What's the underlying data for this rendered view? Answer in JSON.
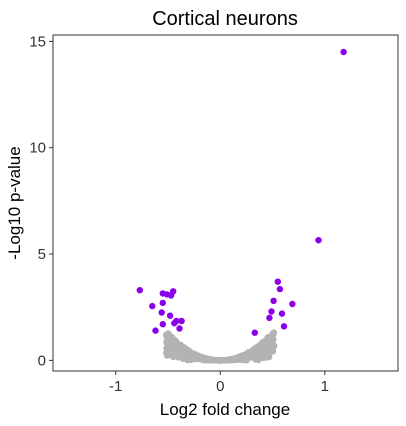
{
  "chart_data": {
    "type": "scatter",
    "title": "Cortical neurons",
    "xlabel": "Log2 fold change",
    "ylabel": "-Log10 p-value",
    "xlim": [
      -1.6,
      1.7
    ],
    "ylim": [
      -0.5,
      15.3
    ],
    "x_ticks": [
      -1,
      0,
      1
    ],
    "x_tick_labels": [
      "-1",
      "0",
      "1"
    ],
    "y_ticks": [
      0,
      5,
      10,
      15
    ],
    "y_tick_labels": [
      "0",
      "5",
      "10",
      "15"
    ],
    "grid": false,
    "colors": {
      "significant": "#8B00E8",
      "nonsignificant": "#B3B3B3"
    },
    "significant_points": [
      {
        "x": 1.18,
        "y": 14.5
      },
      {
        "x": 0.94,
        "y": 5.65
      },
      {
        "x": 0.55,
        "y": 3.7
      },
      {
        "x": 0.57,
        "y": 3.35
      },
      {
        "x": 0.51,
        "y": 2.8
      },
      {
        "x": 0.69,
        "y": 2.65
      },
      {
        "x": 0.49,
        "y": 2.3
      },
      {
        "x": 0.59,
        "y": 2.2
      },
      {
        "x": 0.47,
        "y": 2.0
      },
      {
        "x": 0.61,
        "y": 1.6
      },
      {
        "x": 0.33,
        "y": 1.3
      },
      {
        "x": -0.77,
        "y": 3.3
      },
      {
        "x": -0.55,
        "y": 3.15
      },
      {
        "x": -0.51,
        "y": 3.1
      },
      {
        "x": -0.47,
        "y": 3.05
      },
      {
        "x": -0.45,
        "y": 3.25
      },
      {
        "x": -0.55,
        "y": 2.7
      },
      {
        "x": -0.65,
        "y": 2.55
      },
      {
        "x": -0.56,
        "y": 2.25
      },
      {
        "x": -0.48,
        "y": 2.1
      },
      {
        "x": -0.42,
        "y": 1.85
      },
      {
        "x": -0.37,
        "y": 1.85
      },
      {
        "x": -0.44,
        "y": 1.75
      },
      {
        "x": -0.55,
        "y": 1.7
      },
      {
        "x": -0.62,
        "y": 1.4
      },
      {
        "x": -0.39,
        "y": 1.5
      }
    ],
    "nonsignificant_points": {
      "note_shape": "v-shaped cloud",
      "x_range": [
        -0.52,
        0.52
      ],
      "y_range": [
        0,
        1.4
      ]
    }
  }
}
